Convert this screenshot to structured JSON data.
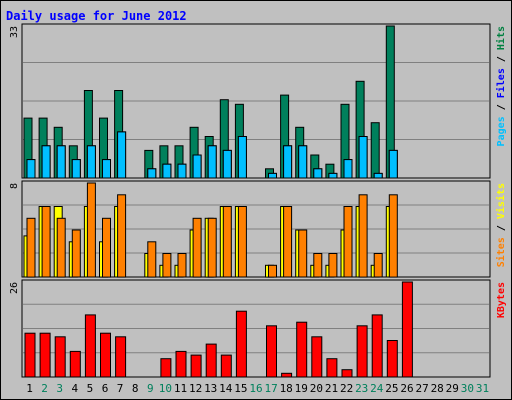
{
  "chart_data": {
    "type": "bar",
    "title": "Daily usage for June 2012",
    "categories": [
      "1",
      "2",
      "3",
      "4",
      "5",
      "6",
      "7",
      "8",
      "9",
      "10",
      "11",
      "12",
      "13",
      "14",
      "15",
      "16",
      "17",
      "18",
      "19",
      "20",
      "21",
      "22",
      "23",
      "24",
      "25",
      "26",
      "27",
      "28",
      "29",
      "30",
      "31"
    ],
    "weekend_days": [
      "2",
      "3",
      "9",
      "10",
      "16",
      "17",
      "23",
      "24",
      "30",
      "31"
    ],
    "panels": [
      {
        "id": "pages-files-hits",
        "max_label": "33",
        "ylim": [
          0,
          33
        ],
        "legend": [
          {
            "text": "Pages",
            "color": "#00c0ff"
          },
          {
            "text": "Files",
            "color": "#0000ff"
          },
          {
            "text": "Hits",
            "color": "#008040"
          }
        ],
        "legend_separator": " / ",
        "series": [
          {
            "name": "Hits",
            "color": "#00805c",
            "values": [
              13,
              13,
              11,
              7,
              19,
              13,
              19,
              0,
              6,
              7,
              7,
              11,
              9,
              17,
              16,
              0,
              2,
              18,
              11,
              5,
              3,
              16,
              21,
              12,
              33,
              0,
              0,
              0,
              0,
              0,
              0
            ]
          },
          {
            "name": "Files",
            "color": "#0000ff",
            "values": [
              4,
              7,
              7,
              4,
              7,
              4,
              10,
              0,
              2,
              3,
              3,
              5,
              7,
              6,
              9,
              0,
              1,
              7,
              7,
              2,
              1,
              4,
              9,
              1,
              6,
              0,
              0,
              0,
              0,
              0,
              0
            ]
          },
          {
            "name": "Pages",
            "color": "#00bfff",
            "values": [
              4,
              7,
              7,
              4,
              7,
              4,
              10,
              0,
              2,
              3,
              3,
              5,
              7,
              6,
              9,
              0,
              1,
              7,
              7,
              2,
              1,
              4,
              9,
              1,
              6,
              0,
              0,
              0,
              0,
              0,
              0
            ]
          }
        ]
      },
      {
        "id": "visits-sites",
        "max_label": "8",
        "ylim": [
          0,
          8
        ],
        "legend": [
          {
            "text": "Sites",
            "color": "#ff8000"
          },
          {
            "text": "Visits",
            "color": "#ffff00"
          }
        ],
        "legend_separator": " / ",
        "series": [
          {
            "name": "Visits",
            "color": "#ffff00",
            "values": [
              3.5,
              6,
              6,
              3,
              6,
              3,
              6,
              0,
              2,
              1,
              1,
              4,
              5,
              6,
              6,
              0,
              1,
              6,
              4,
              1,
              1,
              4,
              6,
              1,
              6,
              0,
              0,
              0,
              0,
              0,
              0
            ]
          },
          {
            "name": "Sites",
            "color": "#ff8000",
            "values": [
              5,
              6,
              5,
              4,
              8,
              5,
              7,
              0,
              3,
              2,
              2,
              5,
              5,
              6,
              6,
              0,
              1,
              6,
              4,
              2,
              2,
              6,
              7,
              2,
              7,
              0,
              0,
              0,
              0,
              0,
              0
            ]
          }
        ]
      },
      {
        "id": "kbytes",
        "max_label": "26",
        "ylim": [
          0,
          26
        ],
        "legend": [
          {
            "text": "KBytes",
            "color": "#ff0000"
          }
        ],
        "legend_separator": "",
        "series": [
          {
            "name": "KBytes",
            "color": "#ff0000",
            "values": [
              12,
              12,
              11,
              7,
              17,
              12,
              11,
              0,
              5,
              7,
              6,
              9,
              6,
              18,
              14,
              1,
              15,
              11,
              5,
              2,
              14,
              17,
              10,
              26,
              0,
              0,
              0,
              0,
              0,
              0,
              0
            ]
          }
        ]
      }
    ],
    "kbytes_day_map": [
      0,
      1,
      2,
      3,
      4,
      5,
      6,
      8,
      9,
      10,
      11,
      12,
      13,
      14,
      16,
      17,
      18,
      19,
      20,
      21,
      22,
      23,
      24,
      25,
      26,
      27,
      28,
      29,
      30,
      31,
      32
    ],
    "colors": {
      "background": "#c0c0c0",
      "plot_area": "#c0c0c0",
      "grid": "#808080",
      "title": "#0000ff",
      "weekday_label": "#000000",
      "weekend_label": "#00805c"
    }
  }
}
